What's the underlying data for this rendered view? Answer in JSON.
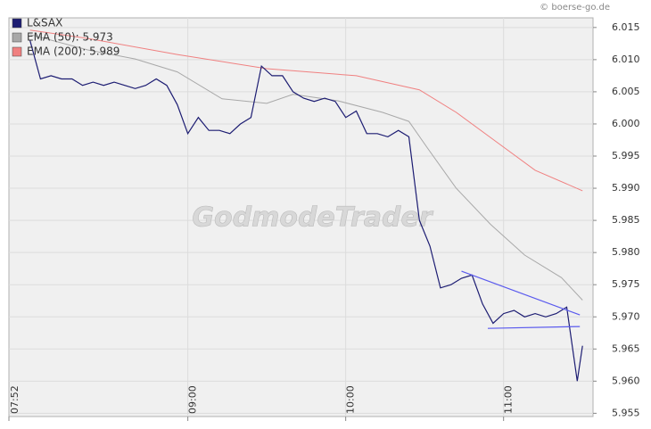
{
  "chart_data": {
    "type": "line",
    "source": "© boerse-go.de",
    "watermark": "GodmodeTrader",
    "xlim": [
      "07:52",
      "11:34"
    ],
    "xticks": [
      "07:52",
      "09:00",
      "10:00",
      "11:00"
    ],
    "ylim": [
      5.9545,
      6.0165
    ],
    "yticks": [
      {
        "value": 5.955,
        "label": "5.955"
      },
      {
        "value": 5.96,
        "label": "5.960"
      },
      5.965,
      {
        "value": 5.97,
        "label": "5.970"
      },
      5.975,
      {
        "value": 5.98,
        "label": "5.980"
      },
      5.985,
      {
        "value": 5.99,
        "label": "5.990"
      },
      5.995,
      {
        "value": 6.0,
        "label": "6.000"
      },
      6.005,
      {
        "value": 6.01,
        "label": "6.010"
      },
      6.015
    ],
    "grid": true,
    "legend": "top-left",
    "series": [
      {
        "name": "L&SAX",
        "color": "#1c1c72",
        "x": [
          "08:00",
          "08:04",
          "08:08",
          "08:12",
          "08:16",
          "08:20",
          "08:24",
          "08:28",
          "08:32",
          "08:36",
          "08:40",
          "08:44",
          "08:48",
          "08:52",
          "08:56",
          "09:00",
          "09:04",
          "09:08",
          "09:12",
          "09:16",
          "09:20",
          "09:24",
          "09:28",
          "09:32",
          "09:36",
          "09:40",
          "09:44",
          "09:48",
          "09:52",
          "09:56",
          "10:00",
          "10:04",
          "10:08",
          "10:12",
          "10:16",
          "10:20",
          "10:24",
          "10:28",
          "10:32",
          "10:36",
          "10:40",
          "10:44",
          "10:48",
          "10:52",
          "10:56",
          "11:00",
          "11:04",
          "11:08",
          "11:12",
          "11:16",
          "11:20",
          "11:24",
          "11:28",
          "11:30"
        ],
        "values": [
          6.013,
          6.007,
          6.0075,
          6.007,
          6.007,
          6.006,
          6.0065,
          6.006,
          6.0065,
          6.006,
          6.0055,
          6.006,
          6.007,
          6.006,
          6.003,
          5.9985,
          6.001,
          5.999,
          5.999,
          5.9985,
          6.0,
          6.001,
          6.009,
          6.0075,
          6.0075,
          6.005,
          6.004,
          6.0035,
          6.004,
          6.0035,
          6.001,
          6.002,
          5.9985,
          5.9985,
          5.998,
          5.999,
          5.998,
          5.985,
          5.981,
          5.9745,
          5.975,
          5.976,
          5.9765,
          5.972,
          5.969,
          5.9705,
          5.971,
          5.97,
          5.9705,
          5.97,
          5.9705,
          5.9715,
          5.96,
          5.9655
        ]
      },
      {
        "name": "EMA (50): 5.973",
        "color": "#a8a8a8",
        "x": [
          "08:00",
          "08:22",
          "08:40",
          "08:56",
          "09:13",
          "09:30",
          "09:40",
          "09:57",
          "10:14",
          "10:24",
          "10:31",
          "10:42",
          "10:55",
          "11:08",
          "11:22",
          "11:30"
        ],
        "values": [
          6.0139,
          6.0115,
          6.0101,
          6.0081,
          6.0039,
          6.0032,
          6.0046,
          6.0036,
          6.0018,
          6.0004,
          5.9963,
          5.99,
          5.9844,
          5.9796,
          5.9761,
          5.9726
        ]
      },
      {
        "name": "EMA (200): 5.989",
        "color": "#f08080",
        "x": [
          "08:00",
          "08:22",
          "08:56",
          "09:30",
          "10:04",
          "10:28",
          "10:42",
          "10:58",
          "11:12",
          "11:30"
        ],
        "values": [
          6.0146,
          6.0133,
          6.0108,
          6.0086,
          6.0075,
          6.0053,
          6.0018,
          5.997,
          5.9928,
          5.9896
        ]
      }
    ],
    "trendlines": [
      {
        "color": "#5a5aee",
        "x": [
          "10:44",
          "11:29"
        ],
        "values": [
          5.9771,
          5.9703
        ]
      },
      {
        "color": "#5a5aee",
        "x": [
          "10:54",
          "11:29"
        ],
        "values": [
          5.9682,
          5.9685
        ]
      }
    ]
  }
}
